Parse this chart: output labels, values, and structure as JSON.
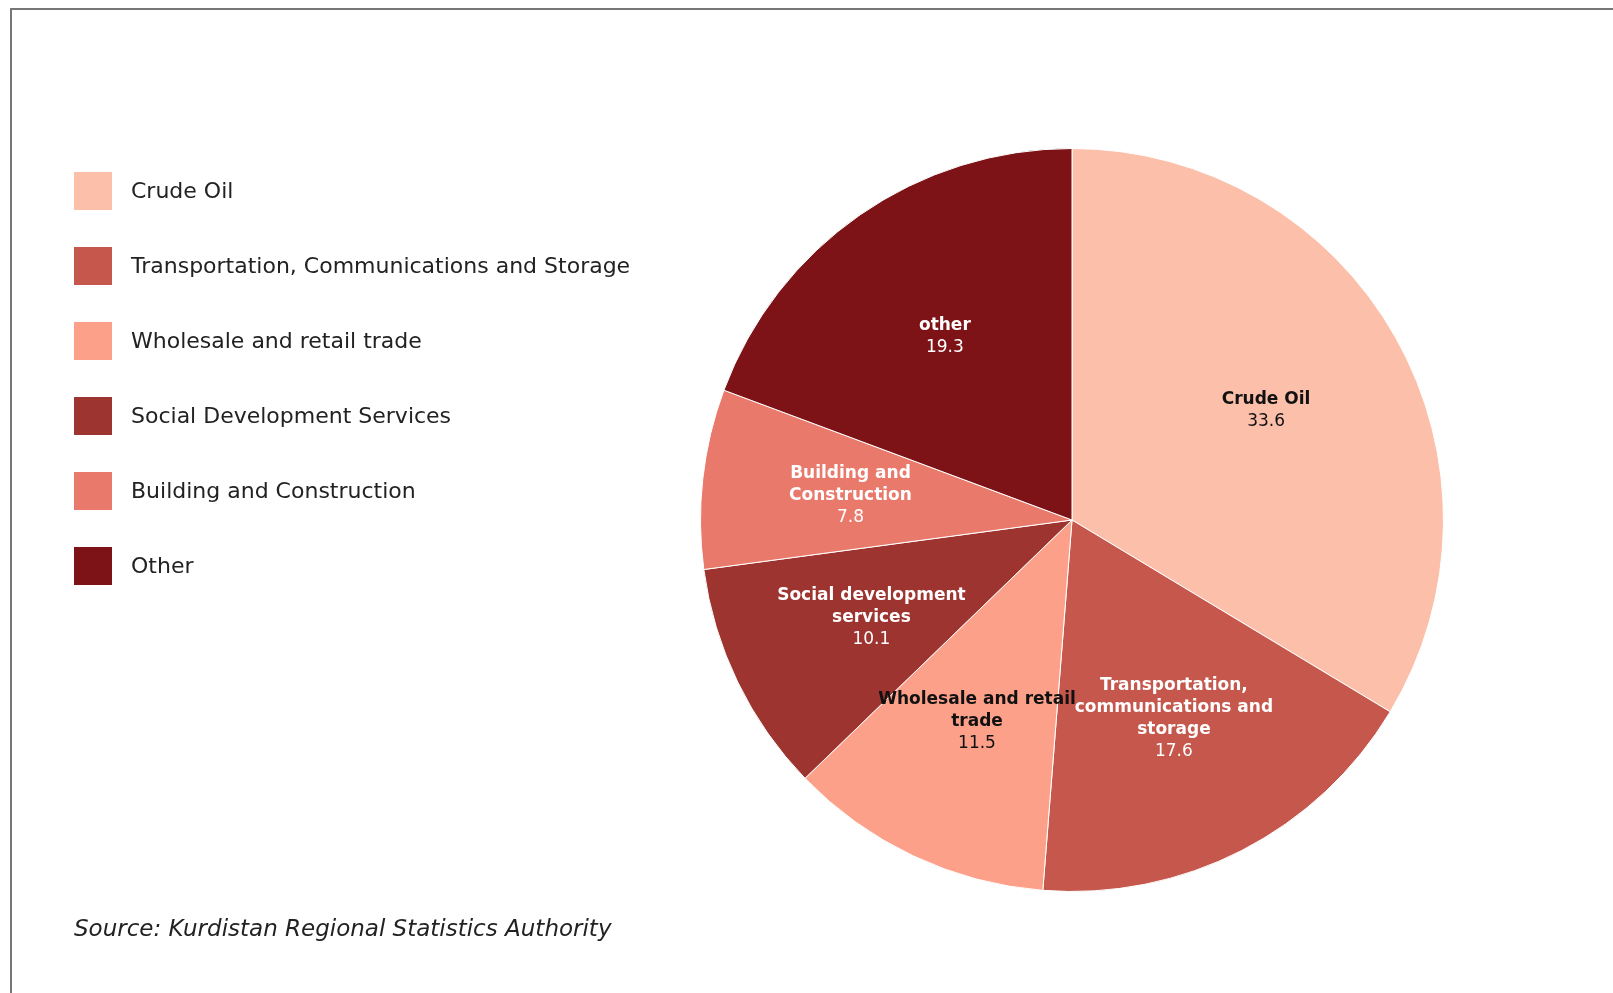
{
  "chart_data": {
    "type": "pie",
    "categories": [
      "Crude Oil",
      "Transportation, Communications and Storage",
      "Wholesale and retail trade",
      "Social Development Services",
      "Building and Construction",
      "Other"
    ],
    "values": [
      33.6,
      17.6,
      11.5,
      10.1,
      7.8,
      19.3
    ],
    "colors": [
      "#fcbfaa",
      "#c5574c",
      "#fda08a",
      "#9e3430",
      "#e9796a",
      "#7d1317"
    ],
    "data_labels": true,
    "legend": "left",
    "annotations": [
      {
        "text": "Crude Oil",
        "x": "Crude Oil"
      },
      {
        "text": "Transportation, communications and storage",
        "x": "Transportation, Communications and Storage"
      },
      {
        "text": "Wholesale and retail trade",
        "x": "Wholesale and retail trade"
      },
      {
        "text": "Social development services",
        "x": "Social Development Services"
      },
      {
        "text": "Building and Construction",
        "x": "Building and Construction"
      },
      {
        "text": "other",
        "x": "Other"
      },
      "Source: Kurdistan Regional Statistics Authority"
    ]
  }
}
